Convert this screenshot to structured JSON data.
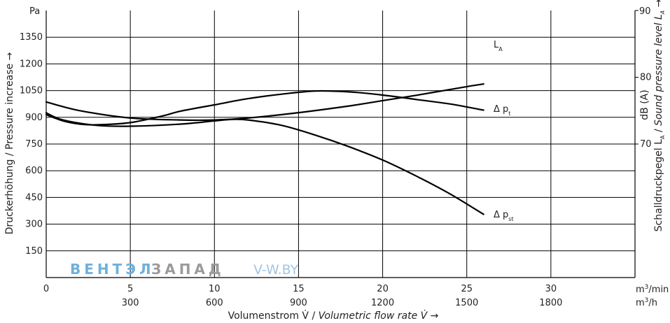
{
  "chart_data": {
    "type": "line",
    "left_unit": "Pa",
    "right_unit_top": "90",
    "ylabel_left": "Druckerhöhung / Pressure increase →",
    "ylabel_right_main": "Schalldruckpegel",
    "ylabel_right_sub": "A",
    "ylabel_right_mid": " / ",
    "ylabel_right_italic": "Sound pressure level L",
    "ylabel_right_sub2": "A",
    "ylabel_right_arrow": " →",
    "ylabel_right_db": "dB (A)",
    "ylabel_right_l": "L",
    "xlabel": "Volumenstrom V̇ / Volumetric flow rate V̇ →",
    "xlabel_plain": "Volumenstrom V̇ / ",
    "xlabel_italic": "Volumetric flow rate V̇",
    "xlabel_arrow": " →",
    "x_unit_min": "m3/min",
    "x_unit_min_base": "m",
    "x_unit_min_sup": "3",
    "x_unit_min_rest": "/min",
    "x_unit_h_base": "m",
    "x_unit_h_sup": "3",
    "x_unit_h_rest": "/h",
    "x_ticks_min": [
      "0",
      "5",
      "10",
      "15",
      "20",
      "25",
      "30"
    ],
    "x_ticks_h": [
      "300",
      "600",
      "900",
      "1200",
      "1500",
      "1800"
    ],
    "x_ticks_h_values": [
      5,
      10,
      15,
      20,
      25,
      30
    ],
    "x_range": [
      0,
      35
    ],
    "y_left_ticks": [
      "150",
      "300",
      "450",
      "600",
      "750",
      "900",
      "1050",
      "1200",
      "1350"
    ],
    "y_left_range": [
      0,
      1500
    ],
    "y_right_ticks": [
      "70",
      "80",
      "90"
    ],
    "y_right_tick_values": [
      70,
      80,
      90
    ],
    "y_right_range": [
      50,
      90
    ],
    "grid": true,
    "series": [
      {
        "name": "LA",
        "label_base": "L",
        "label_sub": "A",
        "axis": "right",
        "x": [
          0,
          2,
          5,
          8,
          10,
          12,
          15,
          18,
          20,
          22,
          25,
          26
        ],
        "y": [
          76.3,
          75.0,
          73.9,
          73.6,
          73.6,
          73.9,
          74.7,
          75.7,
          76.5,
          77.3,
          78.6,
          79.0
        ]
      },
      {
        "name": "Δ pt",
        "label_base": "Δ p",
        "label_sub": "t",
        "axis": "left",
        "x": [
          0,
          1,
          2,
          3,
          5,
          7,
          8,
          10,
          12,
          14,
          16,
          18,
          20,
          22,
          24,
          26
        ],
        "y": [
          915,
          880,
          862,
          858,
          870,
          910,
          935,
          970,
          1005,
          1030,
          1048,
          1043,
          1025,
          1000,
          975,
          940
        ]
      },
      {
        "name": "Δ pst",
        "label_base": "Δ p",
        "label_sub": "st",
        "axis": "left",
        "x": [
          0,
          1,
          3,
          5,
          8,
          10,
          11,
          12,
          14,
          16,
          18,
          20,
          22,
          24,
          26
        ],
        "y": [
          925,
          885,
          855,
          850,
          862,
          880,
          888,
          885,
          855,
          800,
          735,
          660,
          570,
          470,
          355
        ]
      }
    ],
    "watermark": {
      "part1": "ВЕНТЭЛ",
      "part2": "ЗАПАД",
      "part3": "V-W.BY"
    }
  }
}
